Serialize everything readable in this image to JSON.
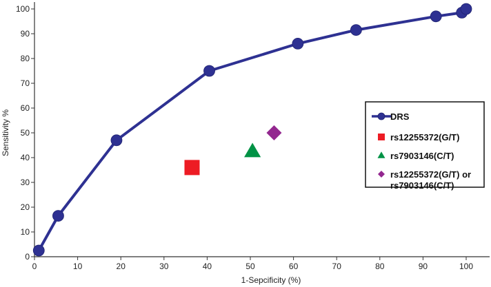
{
  "chart_data": {
    "type": "line",
    "xlabel": "1-Sepcificity (%)",
    "ylabel": "Sensitivity %",
    "xlim": [
      0,
      100
    ],
    "ylim": [
      0,
      100
    ],
    "x_ticks": [
      "0",
      "10",
      "20",
      "30",
      "40",
      "50",
      "60",
      "70",
      "80",
      "90",
      "100"
    ],
    "y_ticks": [
      "0",
      "10",
      "20",
      "30",
      "40",
      "50",
      "60",
      "70",
      "80",
      "90",
      "100"
    ],
    "grid": false,
    "legend_position": "right",
    "series": [
      {
        "name": "DRS",
        "kind": "line-marker",
        "marker": "circle",
        "color": "#2e3192",
        "points": [
          {
            "x": 1,
            "y": 2.5
          },
          {
            "x": 5.5,
            "y": 16.5
          },
          {
            "x": 19,
            "y": 47
          },
          {
            "x": 40.5,
            "y": 75
          },
          {
            "x": 61,
            "y": 86
          },
          {
            "x": 74.5,
            "y": 91.5
          },
          {
            "x": 93,
            "y": 97
          },
          {
            "x": 99,
            "y": 98.5
          },
          {
            "x": 100,
            "y": 100
          }
        ]
      },
      {
        "name": "rs12255372(G/T)",
        "kind": "point",
        "marker": "square",
        "color": "#ed1c24",
        "points": [
          {
            "x": 36.5,
            "y": 36
          }
        ]
      },
      {
        "name": "rs7903146(C/T)",
        "kind": "point",
        "marker": "triangle",
        "color": "#009245",
        "points": [
          {
            "x": 50.5,
            "y": 42.5
          }
        ]
      },
      {
        "name": "rs12255372(G/T) or rs7903146(C/T)",
        "legend_lines": [
          "rs12255372(G/T) or",
          "rs7903146(C/T)"
        ],
        "kind": "point",
        "marker": "diamond",
        "color": "#93278f",
        "points": [
          {
            "x": 55.5,
            "y": 50
          }
        ]
      }
    ]
  }
}
